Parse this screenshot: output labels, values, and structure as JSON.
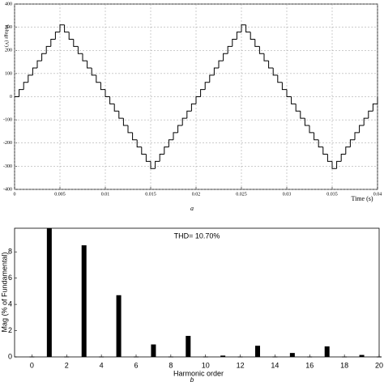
{
  "chart_data": [
    {
      "type": "step",
      "x_label": "Time (s)",
      "y_label": "Voltage (V)",
      "caption": "a",
      "color": "#000000",
      "grid": true,
      "x": [
        0,
        0.0005,
        0.001,
        0.0015,
        0.002,
        0.0025,
        0.003,
        0.0035,
        0.004,
        0.0045,
        0.005,
        0.0055,
        0.006,
        0.0065,
        0.007,
        0.0075,
        0.008,
        0.0085,
        0.009,
        0.0095,
        0.01,
        0.0105,
        0.011,
        0.0115,
        0.012,
        0.0125,
        0.013,
        0.0135,
        0.014,
        0.0145,
        0.015,
        0.0155,
        0.016,
        0.0165,
        0.017,
        0.0175,
        0.018,
        0.0185,
        0.019,
        0.0195,
        0.02,
        0.0205,
        0.021,
        0.0215,
        0.022,
        0.0225,
        0.023,
        0.0235,
        0.024,
        0.0245,
        0.025,
        0.0255,
        0.026,
        0.0265,
        0.027,
        0.0275,
        0.028,
        0.0285,
        0.029,
        0.0295,
        0.03,
        0.0305,
        0.031,
        0.0315,
        0.032,
        0.0325,
        0.033,
        0.0335,
        0.034,
        0.0345,
        0.035,
        0.0355,
        0.036,
        0.0365,
        0.037,
        0.0375,
        0.038,
        0.0385,
        0.039,
        0.0395,
        0.04
      ],
      "values": [
        0,
        31,
        62,
        93,
        124,
        155,
        186,
        217,
        248,
        279,
        310,
        279,
        248,
        217,
        186,
        155,
        124,
        93,
        62,
        31,
        0,
        -31,
        -62,
        -93,
        -124,
        -155,
        -186,
        -217,
        -248,
        -279,
        -310,
        -279,
        -248,
        -217,
        -186,
        -155,
        -124,
        -93,
        -62,
        -31,
        0,
        31,
        62,
        93,
        124,
        155,
        186,
        217,
        248,
        279,
        310,
        279,
        248,
        217,
        186,
        155,
        124,
        93,
        62,
        31,
        0,
        -31,
        -62,
        -93,
        -124,
        -155,
        -186,
        -217,
        -248,
        -279,
        -310,
        -279,
        -248,
        -217,
        -186,
        -155,
        -124,
        -93,
        -62,
        -31,
        0
      ],
      "xlim": [
        0,
        0.04
      ],
      "xticks": [
        0,
        0.005,
        0.01,
        0.015,
        0.02,
        0.025,
        0.03,
        0.035,
        0.04
      ],
      "ylim": [
        -400,
        400
      ],
      "yticks": [
        -400,
        -300,
        -200,
        -100,
        0,
        100,
        200,
        300,
        400
      ]
    },
    {
      "type": "bar",
      "title": "THD= 10.70%",
      "x_label": "Harmonic order",
      "y_label": "Mag (% of Fundamental)",
      "caption": "b",
      "color": "#000000",
      "grid": false,
      "x": [
        0,
        1,
        2,
        3,
        4,
        5,
        6,
        7,
        8,
        9,
        10,
        11,
        12,
        13,
        14,
        15,
        16,
        17,
        18,
        19,
        20
      ],
      "values": [
        0.03,
        9.8,
        0.03,
        8.5,
        0.03,
        4.7,
        0.03,
        0.95,
        0.03,
        1.6,
        0.03,
        0.1,
        0.03,
        0.85,
        0.03,
        0.3,
        0.03,
        0.8,
        0.03,
        0.15,
        0.03
      ],
      "xlim": [
        -1,
        20
      ],
      "xticks": [
        0,
        2,
        4,
        6,
        8,
        10,
        12,
        14,
        16,
        18,
        20
      ],
      "ylim": [
        0,
        9.8
      ],
      "yticks": [
        0,
        2,
        4,
        6,
        8
      ]
    }
  ]
}
